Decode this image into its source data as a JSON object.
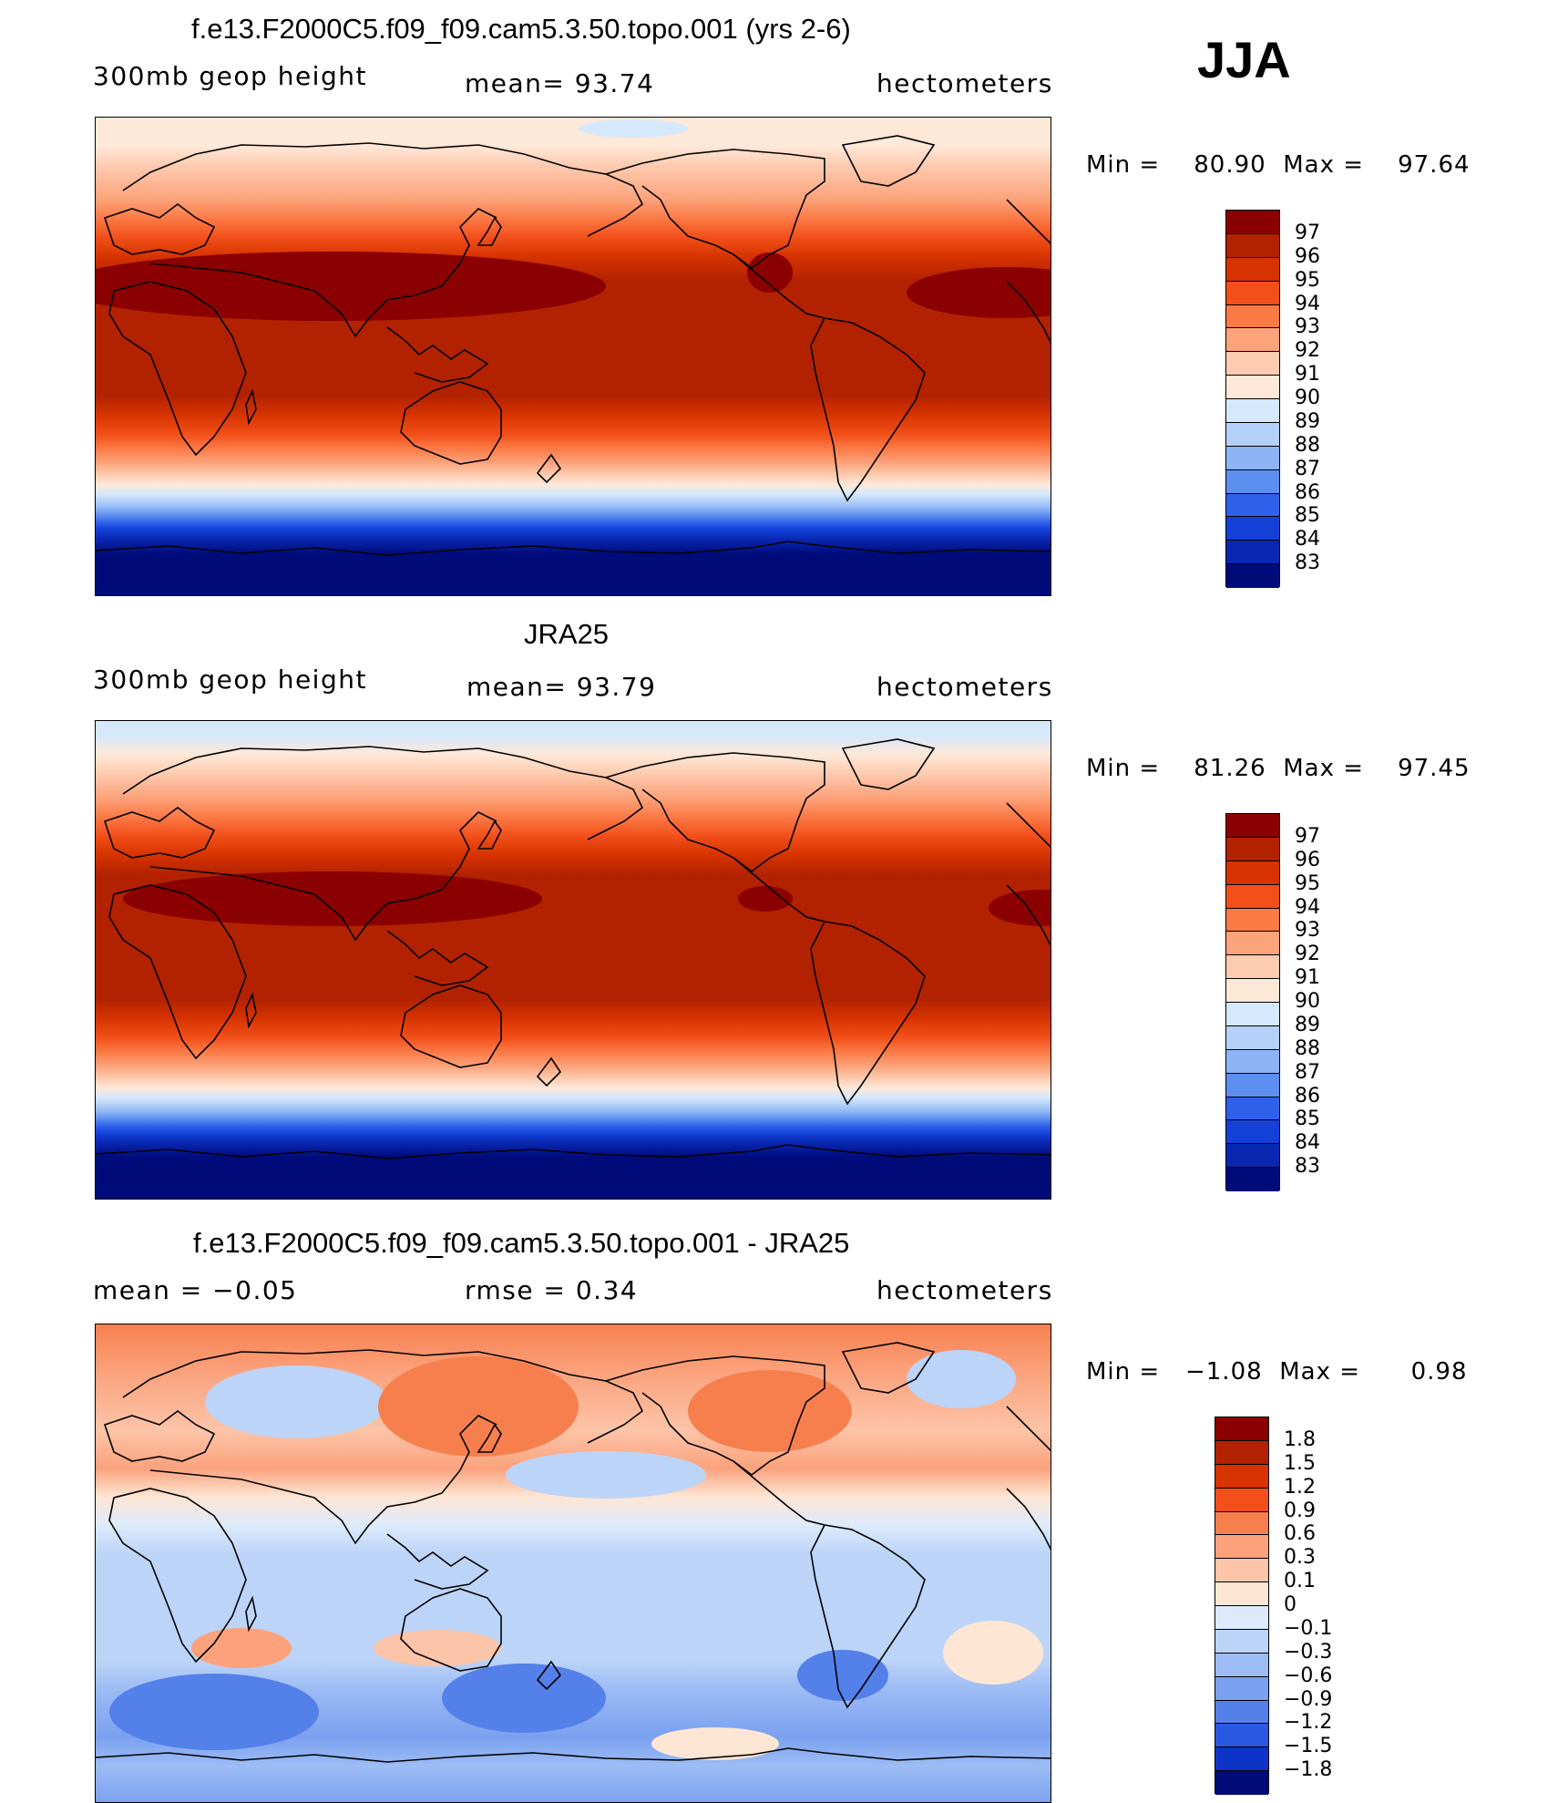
{
  "season": "JJA",
  "panels": [
    {
      "title": "f.e13.F2000C5.f09_f09.cam5.3.50.topo.001 (yrs 2-6)",
      "left_label": "300mb  geop  height",
      "center_label": "mean=   93.74",
      "right_label": "hectometers",
      "min_label": "Min  =",
      "min_value": "80.90",
      "max_label": "Max  =",
      "max_value": "97.64",
      "legend_labels": [
        "97",
        "96",
        "95",
        "94",
        "93",
        "92",
        "91",
        "90",
        "89",
        "88",
        "87",
        "86",
        "85",
        "84",
        "83"
      ]
    },
    {
      "title": "JRA25",
      "left_label": "300mb  geop  height",
      "center_label": "mean=   93.79",
      "right_label": "hectometers",
      "min_label": "Min  =",
      "min_value": "81.26",
      "max_label": "Max  =",
      "max_value": "97.45",
      "legend_labels": [
        "97",
        "96",
        "95",
        "94",
        "93",
        "92",
        "91",
        "90",
        "89",
        "88",
        "87",
        "86",
        "85",
        "84",
        "83"
      ]
    },
    {
      "title": "f.e13.F2000C5.f09_f09.cam5.3.50.topo.001 - JRA25",
      "left_label": "mean  =    −0.05",
      "center_label": "rmse  =     0.34",
      "right_label": "hectometers",
      "min_label": "Min  =",
      "min_value": "−1.08",
      "max_label": "Max  =",
      "max_value": "0.98",
      "legend_labels": [
        "1.8",
        "1.5",
        "1.2",
        "0.9",
        "0.6",
        "0.3",
        "0.1",
        "0",
        "−0.1",
        "−0.3",
        "−0.6",
        "−0.9",
        "−1.2",
        "−1.5",
        "−1.8"
      ]
    }
  ],
  "colors": {
    "warm_scale": [
      "#8b0000",
      "#b22200",
      "#d63300",
      "#f24f1a",
      "#fb7a46",
      "#fca37b",
      "#fdcbb0",
      "#fee8d8",
      "#d6e8fb",
      "#b5d0f9",
      "#8db5f5",
      "#5d8ff0",
      "#2f60ea",
      "#1440d8",
      "#0827b0",
      "#000b7a"
    ],
    "diff_scale": [
      "#8b0000",
      "#b22200",
      "#d63300",
      "#f24f1a",
      "#f77f4e",
      "#fba27d",
      "#fcc4a8",
      "#fee6d4",
      "#dceafb",
      "#bcd4f8",
      "#9dbcf4",
      "#7aa0f0",
      "#5480ea",
      "#2b58e3",
      "#0e33c9",
      "#000b7a"
    ],
    "coast": "#000000"
  }
}
